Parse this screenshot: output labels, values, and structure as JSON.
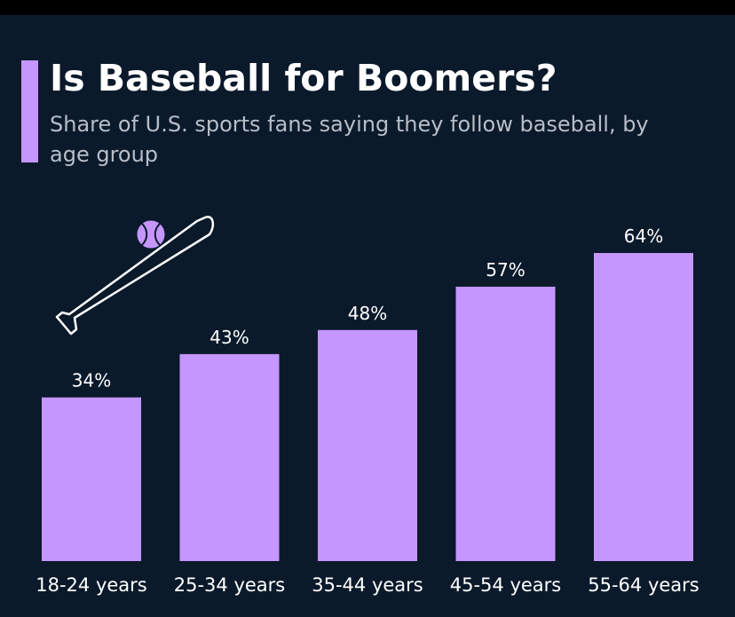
{
  "header": {
    "title": "Is Baseball for Boomers?",
    "subtitle": "Share of U.S. sports fans saying they follow baseball, by age group"
  },
  "colors": {
    "background": "#0b1a2b",
    "bar": "#c696ff",
    "text": "#ffffff",
    "subtitle": "#b7bec8"
  },
  "chart_data": {
    "type": "bar",
    "title": "Is Baseball for Boomers?",
    "subtitle": "Share of U.S. sports fans saying they follow baseball, by age group",
    "categories": [
      "18-24 years",
      "25-34 years",
      "35-44 years",
      "45-54 years",
      "55-64 years"
    ],
    "values": [
      34,
      43,
      48,
      57,
      64
    ],
    "value_suffix": "%",
    "xlabel": "",
    "ylabel": "",
    "ylim": [
      0,
      64
    ],
    "grid": false,
    "legend": "none"
  }
}
